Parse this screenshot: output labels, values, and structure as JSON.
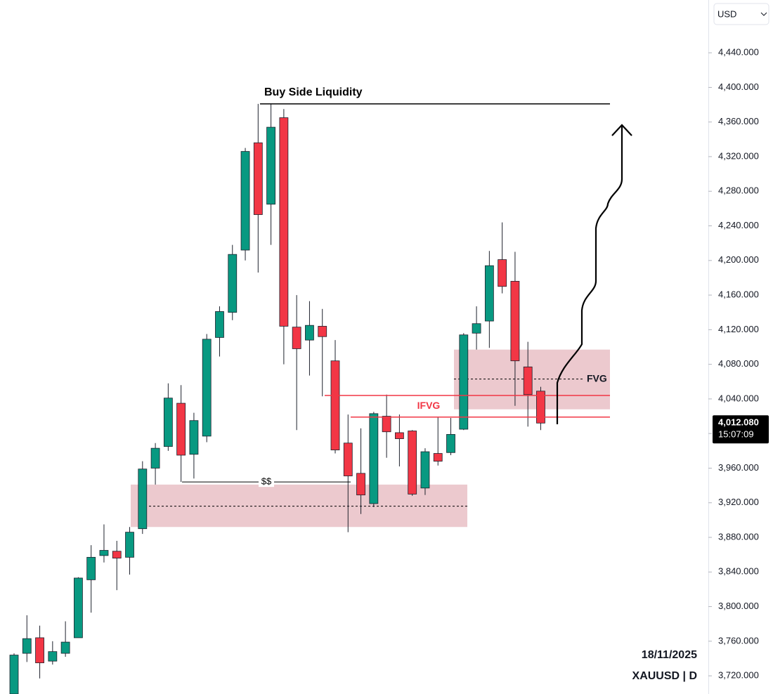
{
  "chart_data": {
    "type": "candlestick",
    "symbol": "XAUUSD | D",
    "date": "18/11/2025",
    "currency": "USD",
    "up_color": "#089981",
    "down_color": "#f23645",
    "open": [
      3699,
      3746,
      3764,
      3737,
      3746,
      3764,
      3831,
      3859,
      3864,
      3857,
      3890,
      3960,
      3985,
      4035,
      3976,
      3997,
      4111,
      4140,
      4212,
      4336,
      4265,
      4365,
      4123,
      4108,
      4124,
      4084,
      3989,
      3954,
      3919,
      4020,
      4001,
      4003,
      3937,
      3977,
      3978,
      4005,
      4116,
      4130,
      4201,
      4176,
      4077,
      4049
    ],
    "high": [
      3746,
      3790,
      3778,
      3760,
      3783,
      3834,
      3871,
      3895,
      3876,
      3892,
      3968,
      3989,
      4058,
      4056,
      4024,
      4115,
      4147,
      4218,
      4330,
      4381,
      4381,
      4375,
      4160,
      4153,
      4144,
      4108,
      4022,
      4006,
      4025,
      4045,
      4022,
      4004,
      3983,
      4019,
      4018,
      4116,
      4147,
      4211,
      4244,
      4210,
      4106,
      4054
    ],
    "low": [
      3699,
      3736,
      3717,
      3733,
      3742,
      3764,
      3793,
      3851,
      3819,
      3837,
      3884,
      3941,
      3980,
      3944,
      3948,
      3990,
      4089,
      4131,
      4200,
      4186,
      4218,
      4080,
      4004,
      4067,
      4043,
      3977,
      3886,
      3907,
      3915,
      3972,
      3962,
      3928,
      3929,
      3963,
      3975,
      4004,
      4097,
      4099,
      4162,
      4032,
      4008,
      4004
    ],
    "close": [
      3744,
      3763,
      3735,
      3748,
      3759,
      3833,
      3857,
      3865,
      3856,
      3886,
      3959,
      3983,
      4041,
      3975,
      4015,
      4109,
      4141,
      4207,
      4326,
      4253,
      4354,
      4124,
      4098,
      4125,
      4112,
      3981,
      3951,
      3929,
      4023,
      4002,
      3994,
      3930,
      3979,
      3968,
      3999,
      4114,
      4127,
      4194,
      4170,
      4084,
      4045,
      4012.08
    ],
    "ylim": [
      3699,
      4501
    ],
    "yticks": [
      {
        "value": 4440,
        "label": "4,440.000"
      },
      {
        "value": 4400,
        "label": "4,400.000"
      },
      {
        "value": 4360,
        "label": "4,360.000"
      },
      {
        "value": 4320,
        "label": "4,320.000"
      },
      {
        "value": 4280,
        "label": "4,280.000"
      },
      {
        "value": 4240,
        "label": "4,240.000"
      },
      {
        "value": 4200,
        "label": "4,200.000"
      },
      {
        "value": 4160,
        "label": "4,160.000"
      },
      {
        "value": 4120,
        "label": "4,120.000"
      },
      {
        "value": 4080,
        "label": "4,080.000"
      },
      {
        "value": 4040,
        "label": "4,040.000"
      },
      {
        "value": 4000,
        "label": "4,000.000"
      },
      {
        "value": 3960,
        "label": "3,960.000"
      },
      {
        "value": 3920,
        "label": "3,920.000"
      },
      {
        "value": 3880,
        "label": "3,880.000"
      },
      {
        "value": 3840,
        "label": "3,840.000"
      },
      {
        "value": 3800,
        "label": "3,800.000"
      },
      {
        "value": 3760,
        "label": "3,760.000"
      },
      {
        "value": 3720,
        "label": "3,720.000"
      }
    ],
    "current_price": {
      "value": 4012.08,
      "label": "4,012.080",
      "time": "15:07:09"
    },
    "buy_side_liquidity": {
      "label": "Buy Side Liquidity",
      "value": 4381
    },
    "sell_side_liquidity": {
      "label": "$$",
      "value": 3944
    },
    "demand_zone": {
      "top": 3941,
      "bottom": 3892,
      "mid": 3916
    },
    "fvg_zone": {
      "label": "FVG",
      "top": 4097,
      "bottom": 4028,
      "mid": 4063
    },
    "ifvg": {
      "label": "IFVG",
      "top": 4044,
      "bottom": 4019
    }
  }
}
